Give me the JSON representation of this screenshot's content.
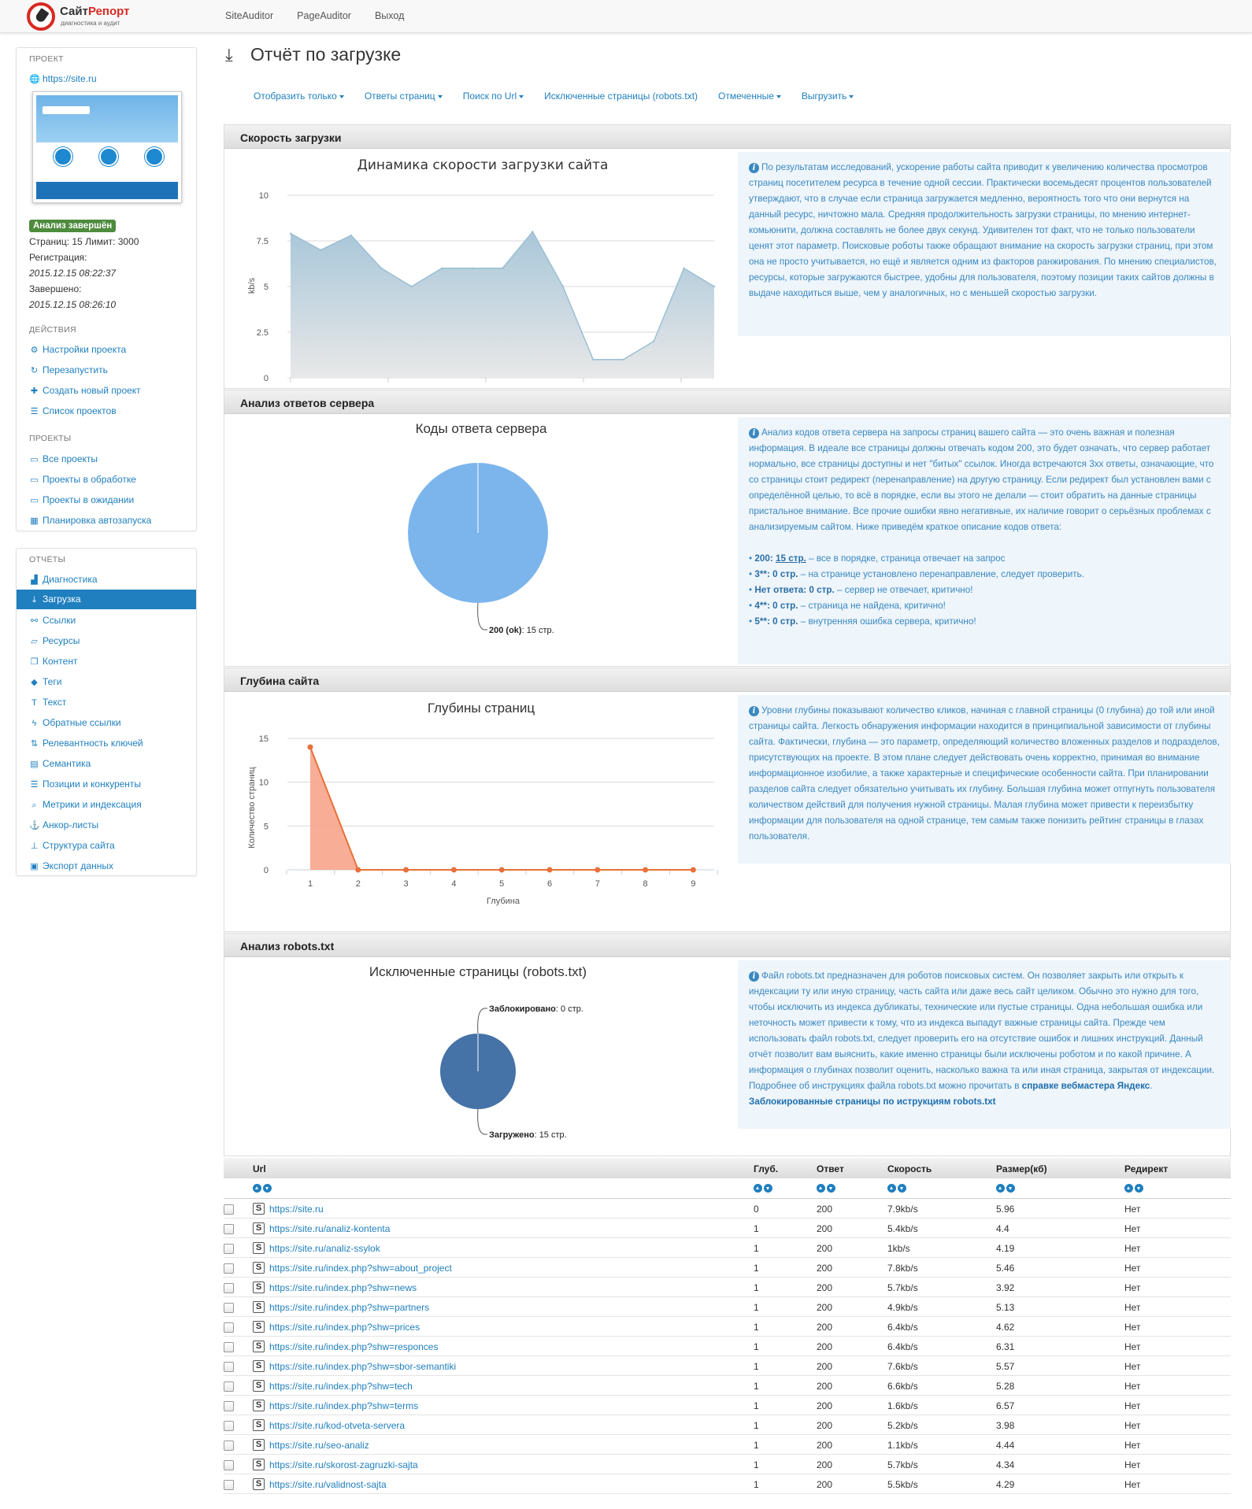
{
  "brand": {
    "name_a": "Сайт",
    "name_b": "Репорт",
    "tagline": "диагностика и аудит"
  },
  "topnav": [
    "SiteAuditor",
    "PageAuditor",
    "Выход"
  ],
  "sidebar": {
    "project_header": "ПРОЕКТ",
    "project_url": "https://site.ru",
    "status_badge": "Анализ завершён",
    "pages_line": "Страниц: 15 Лимит: 3000",
    "registered_label": "Регистрация:",
    "registered_value": "2015.12.15 08:22:37",
    "finished_label": "Завершено:",
    "finished_value": "2015.12.15 08:26:10",
    "actions_header": "ДЕЙСТВИЯ",
    "actions": [
      "Настройки проекта",
      "Перезапустить",
      "Создать новый проект",
      "Список проектов"
    ],
    "projects_header": "ПРОЕКТЫ",
    "projects": [
      "Все проекты",
      "Проекты в обработке",
      "Проекты в ожидании",
      "Планировка автозапуска"
    ],
    "reports_header": "ОТЧЁТЫ",
    "reports": [
      "Диагностика",
      "Загрузка",
      "Ссылки",
      "Ресурсы",
      "Контент",
      "Теги",
      "Текст",
      "Обратные ссылки",
      "Релевантность ключей",
      "Семантика",
      "Позиции и конкуренты",
      "Метрики и индексация",
      "Анкор-листы",
      "Структура сайта",
      "Экспорт данных"
    ],
    "active_report": "Загрузка"
  },
  "page_title": "Отчёт по загрузке",
  "subnav": [
    {
      "label": "Отобразить только",
      "dropdown": true
    },
    {
      "label": "Ответы страниц",
      "dropdown": true
    },
    {
      "label": "Поиск по Url",
      "dropdown": true
    },
    {
      "label": "Исключенные страницы (robots.txt)",
      "dropdown": false
    },
    {
      "label": "Отмеченные",
      "dropdown": true
    },
    {
      "label": "Выгрузить",
      "dropdown": true
    }
  ],
  "sections": {
    "speed": {
      "header": "Скорость загрузки",
      "info": "По результатам исследований, ускорение работы сайта приводит к увеличению количества просмотров страниц посетителем ресурса в течение одной сессии. Практически восемьдесят процентов пользователей утверждают, что в случае если страница загружается медленно, вероятность того что они вернутся на данный ресурс, ничтожно мала. Средняя продолжительность загрузки страницы, по мнению интернет-комьюнити, должна составлять не более двух секунд. Удивителен тот факт, что не только пользователи ценят этот параметр. Поисковые роботы также обращают внимание на скорость загрузки страниц, при этом она не просто учитывается, но ещё и является одним из факторов ранжирования. По мнению специалистов, ресурсы, которые загружаются быстрее, удобны для пользователя, поэтому позиции таких сайтов должны в выдаче находиться выше, чем у аналогичных, но с меньшей скоростью загрузки."
    },
    "server": {
      "header": "Анализ ответов сервера",
      "info": "Анализ кодов ответа сервера на запросы страниц вашего сайта — это очень важная и полезная информация. В идеале все страницы должны отвечать кодом 200, это будет означать, что сервер работает нормально, все страницы доступны и нет \"битых\" ссылок. Иногда встречаются 3хх ответы, означающие, что со страницы стоит редирект (перенаправление) на другую страницу. Если редирект был установлен вами с определённой целью, то всё в порядке, если вы этого не делали — стоит обратить на данные страницы пристальное внимание. Все прочие ошибки явно негативные, их наличие говорит о серьёзных проблемах с анализируемым сайтом. Ниже приведём краткое описание кодов ответа:",
      "codes": [
        {
          "code": "200",
          "count": "15 стр.",
          "desc": " – все в порядке, страница отвечает на запрос",
          "underline": true
        },
        {
          "code": "3**",
          "count": "0 стр.",
          "desc": " – на странице установлено перенаправление, следует проверить.",
          "underline": false
        },
        {
          "code": "Нет ответа",
          "count": "0 стр.",
          "desc": " – сервер не отвечает, критично!",
          "underline": false
        },
        {
          "code": "4**",
          "count": "0 стр.",
          "desc": " – страница не найдена, критично!",
          "underline": false
        },
        {
          "code": "5**",
          "count": "0 стр.",
          "desc": " – внутренняя ошибка сервера, критично!",
          "underline": false
        }
      ]
    },
    "depth": {
      "header": "Глубина сайта",
      "info": "Уровни глубины показывают количество кликов, начиная с главной страницы (0 глубина) до той или иной страницы сайта. Легкость обнаружения информации находится в принципиальной зависимости от глубины сайта. Фактически, глубина — это параметр, определяющий количество вложенных разделов и подразделов, присутствующих на проекте. В этом плане следует действовать очень корректно, принимая во внимание информационное изобилие, а также характерные и специфические особенности сайта. При планировании разделов сайта следует обязательно учитывать их глубину. Большая глубина может отпугнуть пользователя количеством действий для получения нужной страницы. Малая глубина может привести к переизбытку информации для пользователя на одной странице, тем самым также понизить рейтинг страницы в глазах пользователя."
    },
    "robots": {
      "header": "Анализ robots.txt",
      "info": "Файл robots.txt предназначен для роботов поисковых систем. Он позволяет закрыть или открыть к индексации ту или иную страницу, часть сайта или даже весь сайт целиком. Обычно это нужно для того, чтобы исключить из индекса дубликаты, технические или пустые страницы. Одна небольшая ошибка или неточность может привести к тому, что из индекса выпадут важные страницы сайта. Прежде чем использовать файл robots.txt, следует проверить его на отсутствие ошибок и лишних инструкций. Данный отчёт позволит вам выяснить, какие именно страницы были исключены роботом и по какой причине. А информация о глубинах позволит оценить, насколько важна та или иная страница, закрытая от индексации. Подробнее об инструкциях файла robots.txt можно прочитать в",
      "link1": "справке вебмастера Яндекс",
      "link1_tail": ".",
      "link2": "Заблокированные страницы по иструкциям robots.txt"
    }
  },
  "chart_data": [
    {
      "type": "area",
      "title": "Динамика скорости загрузки сайта",
      "ylabel": "kb/s",
      "xlabel": "",
      "ylim": [
        0,
        10
      ],
      "yticks": [
        "0",
        "2.5",
        "5",
        "7.5",
        "10"
      ],
      "x": [
        1,
        2,
        3,
        4,
        5,
        6,
        7,
        8,
        9,
        10,
        11,
        12,
        13,
        14,
        15
      ],
      "values": [
        7.9,
        7.0,
        7.8,
        6.0,
        5.0,
        6.0,
        6.0,
        6.0,
        8.0,
        5.0,
        1.0,
        1.0,
        2.0,
        6.0,
        5.0
      ],
      "colors": {
        "fill_top": "#a9c7d9",
        "fill_bottom": "#e8e8e8",
        "line": "#9bbfd3"
      }
    },
    {
      "type": "pie",
      "title": "Коды ответа сервера",
      "slices": [
        {
          "label": "200 (ok)",
          "value": 15,
          "value_text": "15 стр."
        }
      ],
      "colors": {
        "slice": "#7cb5ec"
      }
    },
    {
      "type": "area",
      "title": "Глубины страниц",
      "xlabel": "Глубина",
      "ylabel": "Количество страниц",
      "ylim": [
        0,
        15
      ],
      "yticks": [
        "0",
        "5",
        "10",
        "15"
      ],
      "categories": [
        "1",
        "2",
        "3",
        "4",
        "5",
        "6",
        "7",
        "8",
        "9"
      ],
      "values": [
        14,
        0,
        0,
        0,
        0,
        0,
        0,
        0,
        0
      ],
      "colors": {
        "fill": "#f7a48b",
        "line": "#e8703a"
      }
    },
    {
      "type": "pie",
      "title": "Исключенные страницы (robots.txt)",
      "slices": [
        {
          "label": "Заблокировано",
          "value": 0,
          "value_text": "0 стр."
        },
        {
          "label": "Загружено",
          "value": 15,
          "value_text": "15 стр."
        }
      ],
      "colors": {
        "slice": "#4572a7"
      }
    }
  ],
  "table": {
    "columns": [
      "Url",
      "Глуб.",
      "Ответ",
      "Скорость",
      "Размер(кб)",
      "Редирект"
    ],
    "rows": [
      [
        "https://site.ru",
        "0",
        "200",
        "7.9kb/s",
        "5.96",
        "Нет"
      ],
      [
        "https://site.ru/analiz-kontenta",
        "1",
        "200",
        "5.4kb/s",
        "4.4",
        "Нет"
      ],
      [
        "https://site.ru/analiz-ssylok",
        "1",
        "200",
        "1kb/s",
        "4.19",
        "Нет"
      ],
      [
        "https://site.ru/index.php?shw=about_project",
        "1",
        "200",
        "7.8kb/s",
        "5.46",
        "Нет"
      ],
      [
        "https://site.ru/index.php?shw=news",
        "1",
        "200",
        "5.7kb/s",
        "3.92",
        "Нет"
      ],
      [
        "https://site.ru/index.php?shw=partners",
        "1",
        "200",
        "4.9kb/s",
        "5.13",
        "Нет"
      ],
      [
        "https://site.ru/index.php?shw=prices",
        "1",
        "200",
        "6.4kb/s",
        "4.62",
        "Нет"
      ],
      [
        "https://site.ru/index.php?shw=responces",
        "1",
        "200",
        "6.4kb/s",
        "6.31",
        "Нет"
      ],
      [
        "https://site.ru/index.php?shw=sbor-semantiki",
        "1",
        "200",
        "7.6kb/s",
        "5.57",
        "Нет"
      ],
      [
        "https://site.ru/index.php?shw=tech",
        "1",
        "200",
        "6.6kb/s",
        "5.28",
        "Нет"
      ],
      [
        "https://site.ru/index.php?shw=terms",
        "1",
        "200",
        "1.6kb/s",
        "6.57",
        "Нет"
      ],
      [
        "https://site.ru/kod-otveta-servera",
        "1",
        "200",
        "5.2kb/s",
        "3.98",
        "Нет"
      ],
      [
        "https://site.ru/seo-analiz",
        "1",
        "200",
        "1.1kb/s",
        "4.44",
        "Нет"
      ],
      [
        "https://site.ru/skorost-zagruzki-sajta",
        "1",
        "200",
        "5.7kb/s",
        "4.34",
        "Нет"
      ],
      [
        "https://site.ru/validnost-sajta",
        "1",
        "200",
        "5.5kb/s",
        "4.29",
        "Нет"
      ]
    ]
  }
}
